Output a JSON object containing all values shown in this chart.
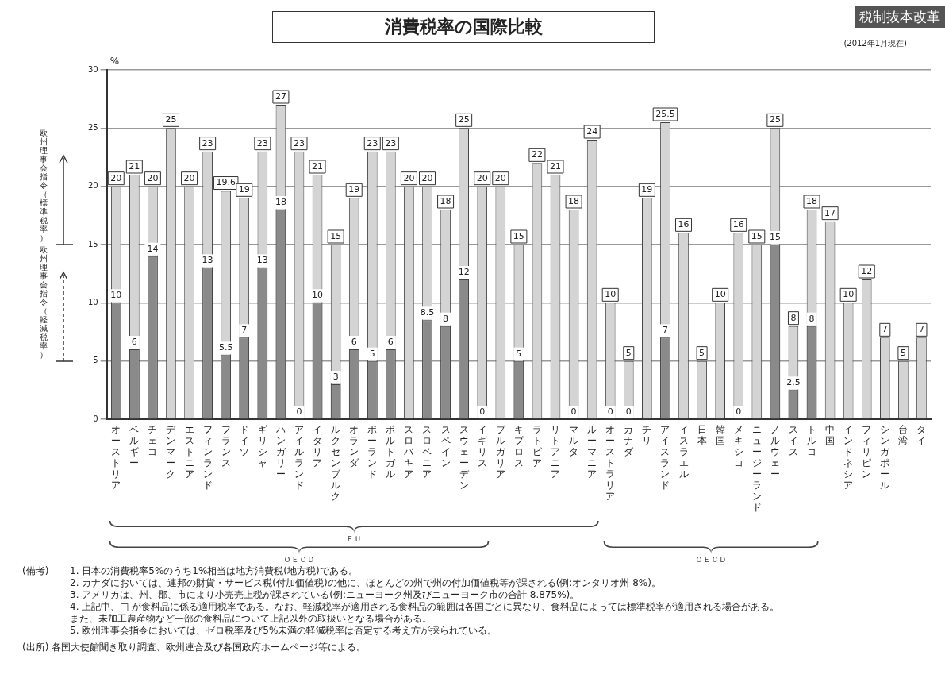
{
  "chart_data": {
    "type": "bar",
    "title": "消費税率の国際比較",
    "ylabel": "%",
    "categories": [
      "オーストリア",
      "ベルギー",
      "チェコ",
      "デンマーク",
      "エストニア",
      "フィンランド",
      "フランス",
      "ドイツ",
      "ギリシャ",
      "ハンガリー",
      "アイルランド",
      "イタリア",
      "ルクセンブルク",
      "オランダ",
      "ポーランド",
      "ポルトガル",
      "スロバキア",
      "スロベニア",
      "スペイン",
      "スウェーデン",
      "イギリス",
      "ブルガリア",
      "キプロス",
      "ラトビア",
      "リトアニア",
      "マルタ",
      "ルーマニア",
      "オーストラリア",
      "カナダ",
      "チリ",
      "アイスランド",
      "イスラエル",
      "日本",
      "韓国",
      "メキシコ",
      "ニュージーランド",
      "ノルウェー",
      "スイス",
      "トルコ",
      "中国",
      "インドネシア",
      "フィリピン",
      "シンガポール",
      "台湾",
      "タイ"
    ],
    "series": [
      {
        "color": "#d4d4d4",
        "values": [
          20,
          21,
          20,
          25,
          20,
          23,
          19.6,
          19,
          23,
          27,
          23,
          21,
          15,
          19,
          23,
          23,
          20,
          20,
          18,
          25,
          20,
          20,
          15,
          22,
          21,
          18,
          24,
          10,
          5,
          19,
          25.5,
          16,
          5,
          10,
          16,
          15,
          25,
          8,
          18,
          17,
          10,
          12,
          7,
          5,
          7
        ]
      },
      {
        "color": "#8a8a8a",
        "values": [
          10,
          6,
          14,
          null,
          null,
          13,
          5.5,
          7,
          13,
          18,
          0,
          10,
          3,
          6,
          5,
          6,
          null,
          8.5,
          8,
          12,
          0,
          null,
          5,
          null,
          null,
          0,
          null,
          0,
          0,
          null,
          7,
          null,
          null,
          null,
          0,
          null,
          15,
          2.5,
          8,
          null,
          null,
          null,
          null,
          null,
          null
        ]
      }
    ],
    "ylim": [
      0,
      30
    ],
    "yticks": [
      0,
      5,
      10,
      15,
      20,
      25,
      30
    ],
    "grid": "y",
    "data_labels": true,
    "annotations": [
      "(2012年1月現在)",
      "税制抜本改革",
      "欧州理事会指令（標準税率）",
      "欧州理事会指令（軽減税率）",
      "ＥＵ",
      "ＯＥＣＤ",
      "ＯＥＣＤ",
      "(備考)",
      "1. 日本の消費税率5%のうち1%相当は地方消費税(地方税)である。",
      "2. カナダにおいては、連邦の財貨・サービス税(付加価値税)の他に、ほとんどの州で州の付加価値税等が課される(例:オンタリオ州 8%)。",
      "3. アメリカは、州、郡、市により小売売上税が課されている(例:ニューヨーク州及びニューヨーク市の合計 8.875%)。",
      "4. 上記中、□ が食料品に係る適用税率である。なお、軽減税率が適用される食料品の範囲は各国ごとに異なり、食料品によっては標準税率が適用される場合がある。",
      "また、未加工農産物など一部の食料品について上記以外の取扱いとなる場合がある。",
      "5. 欧州理事会指令においては、ゼロ税率及び5%未満の軽減税率は否定する考え方が採られている。",
      "(出所) 各国大使館聞き取り調査、欧州連合及び各国政府ホームページ等による。"
    ]
  }
}
